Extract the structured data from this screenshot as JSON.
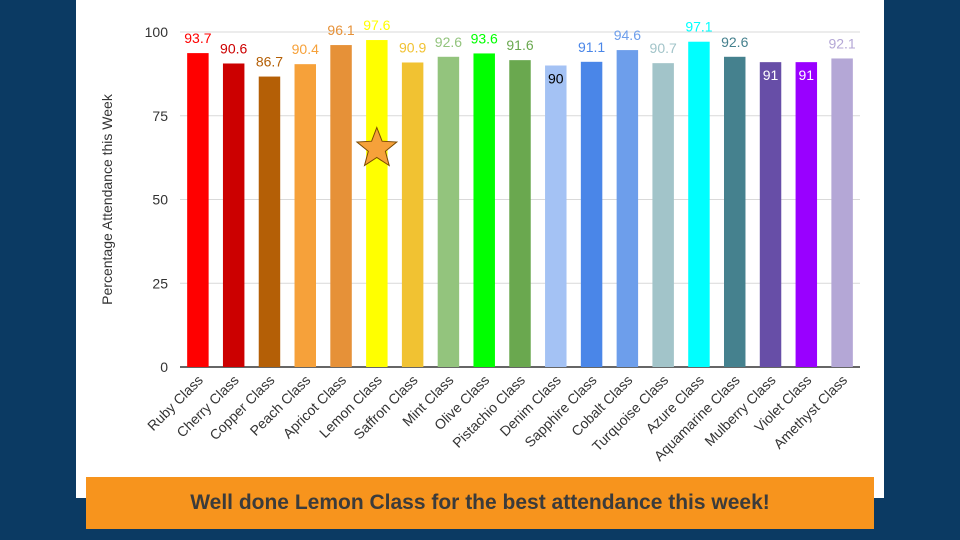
{
  "chart_data": {
    "type": "bar",
    "title": "",
    "xlabel": "",
    "ylabel": "Percentage Attendance this Week",
    "ylim": [
      0,
      100
    ],
    "yticks": [
      0,
      25,
      50,
      75,
      100
    ],
    "grid": true,
    "categories": [
      "Ruby Class",
      "Cherry Class",
      "Copper Class",
      "Peach Class",
      "Apricot Class",
      "Lemon Class",
      "Saffron Class",
      "Mint Class",
      "Olive Class",
      "Pistachio Class",
      "Denim Class",
      "Sapphire Class",
      "Cobalt Class",
      "Turquoise Class",
      "Azure Class",
      "Aquamarine Class",
      "Mulberry Class",
      "Violet Class",
      "Amethyst Class"
    ],
    "values": [
      93.7,
      90.6,
      86.7,
      90.4,
      96.1,
      97.6,
      90.9,
      92.6,
      93.6,
      91.6,
      90,
      91.1,
      94.6,
      90.7,
      97.1,
      92.6,
      91,
      91,
      92.1
    ],
    "colors": [
      "#ff0000",
      "#cc0000",
      "#b45f06",
      "#f6a13a",
      "#e69138",
      "#ffff00",
      "#f1c232",
      "#93c47d",
      "#00ff00",
      "#6aa84f",
      "#a4c2f4",
      "#4a86e8",
      "#6d9eeb",
      "#a2c4c9",
      "#00ffff",
      "#45818e",
      "#674ea7",
      "#9900ff",
      "#b4a7d6"
    ],
    "label_colors": [
      "#ff0000",
      "#cc0000",
      "#b45f06",
      "#f6a13a",
      "#e69138",
      "#ffff00",
      "#f1c232",
      "#93c47d",
      "#00ff00",
      "#6aa84f",
      "#000000",
      "#4a86e8",
      "#6d9eeb",
      "#a2c4c9",
      "#00ffff",
      "#45818e",
      "#ffffff",
      "#ffffff",
      "#b4a7d6"
    ],
    "label_inside": [
      false,
      false,
      false,
      false,
      false,
      false,
      false,
      false,
      false,
      false,
      true,
      false,
      false,
      false,
      false,
      false,
      true,
      true,
      false
    ],
    "highlight_category": "Lemon Class",
    "highlight_icon": "star-icon",
    "highlight_color": "#f6a13a"
  },
  "banner": {
    "text": "Well done Lemon Class for the best attendance this week!",
    "color": "#f7941d"
  }
}
